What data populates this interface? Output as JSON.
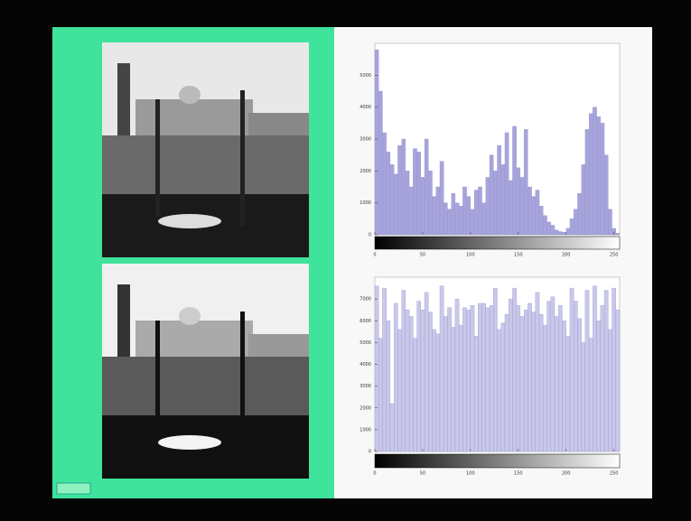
{
  "chart_data": [
    {
      "type": "histogram",
      "color": "#a7a4dc",
      "bins": [
        0,
        4,
        8,
        12,
        16,
        20,
        24,
        28,
        32,
        36,
        40,
        44,
        48,
        52,
        56,
        60,
        64,
        68,
        72,
        76,
        80,
        84,
        88,
        92,
        96,
        100,
        104,
        108,
        112,
        116,
        120,
        124,
        128,
        132,
        136,
        140,
        144,
        148,
        152,
        156,
        160,
        164,
        168,
        172,
        176,
        180,
        184,
        188,
        192,
        196,
        200,
        204,
        208,
        212,
        216,
        220,
        224,
        228,
        232,
        236,
        240,
        244,
        248,
        252,
        256
      ],
      "values": [
        5800,
        4500,
        3200,
        2600,
        2200,
        1900,
        2800,
        3000,
        2000,
        1500,
        2700,
        2600,
        1800,
        3000,
        2000,
        1200,
        1500,
        2300,
        1000,
        800,
        1300,
        1000,
        900,
        1500,
        1200,
        800,
        1400,
        1500,
        1000,
        1800,
        2500,
        2000,
        2800,
        2200,
        3200,
        1700,
        3400,
        2100,
        1800,
        3300,
        1500,
        1200,
        1400,
        900,
        600,
        400,
        300,
        150,
        100,
        80,
        200,
        500,
        800,
        1300,
        2200,
        3300,
        3800,
        4000,
        3700,
        3500,
        2500,
        800,
        200,
        50
      ],
      "xlim": [
        0,
        256
      ],
      "xticks": [
        0,
        50,
        100,
        150,
        200,
        250
      ],
      "ylim": [
        0,
        6000
      ],
      "yticks": [
        0,
        1000,
        2000,
        3000,
        4000,
        5000
      ]
    },
    {
      "type": "histogram",
      "color": "#c9c8ea",
      "bins": [
        0,
        4,
        8,
        12,
        16,
        20,
        24,
        28,
        32,
        36,
        40,
        44,
        48,
        52,
        56,
        60,
        64,
        68,
        72,
        76,
        80,
        84,
        88,
        92,
        96,
        100,
        104,
        108,
        112,
        116,
        120,
        124,
        128,
        132,
        136,
        140,
        144,
        148,
        152,
        156,
        160,
        164,
        168,
        172,
        176,
        180,
        184,
        188,
        192,
        196,
        200,
        204,
        208,
        212,
        216,
        220,
        224,
        228,
        232,
        236,
        240,
        244,
        248,
        252,
        256
      ],
      "values": [
        7600,
        5200,
        7500,
        6000,
        2200,
        6800,
        5600,
        7400,
        6500,
        6200,
        5200,
        6900,
        6500,
        7300,
        6400,
        5600,
        5400,
        7600,
        6200,
        6600,
        5700,
        7000,
        5800,
        6600,
        6500,
        6700,
        5300,
        6800,
        6800,
        6600,
        6700,
        7500,
        5600,
        5900,
        6300,
        7000,
        7500,
        6700,
        6200,
        6500,
        6800,
        6400,
        7300,
        6300,
        5800,
        6900,
        7100,
        6200,
        6700,
        6000,
        5300,
        7500,
        6900,
        6100,
        5000,
        7400,
        5200,
        7600,
        6000,
        6700,
        7400,
        5600,
        7500,
        6500
      ],
      "xlim": [
        0,
        256
      ],
      "xticks": [
        0,
        50,
        100,
        150,
        200,
        250
      ],
      "ylim": [
        0,
        8000
      ],
      "yticks": [
        0,
        1000,
        2000,
        3000,
        4000,
        5000,
        6000,
        7000
      ]
    }
  ]
}
